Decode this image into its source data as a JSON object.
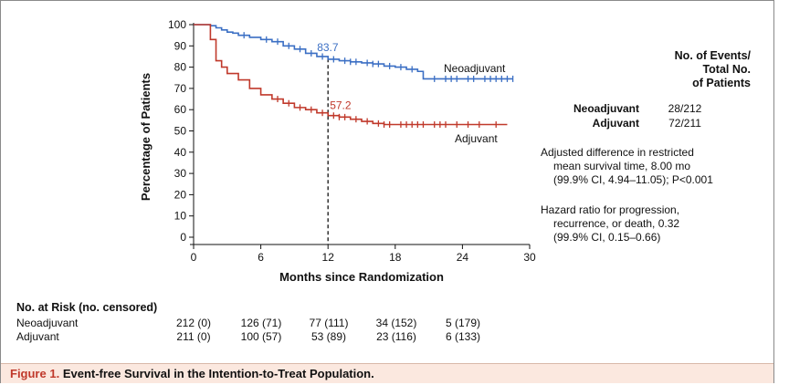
{
  "chart_data": {
    "type": "line",
    "xlabel": "Months since Randomization",
    "ylabel": "Percentage of Patients",
    "xlim": [
      0,
      30
    ],
    "ylim": [
      0,
      100
    ],
    "xticks": [
      0,
      6,
      12,
      18,
      24,
      30
    ],
    "yticks": [
      0,
      10,
      20,
      30,
      40,
      50,
      60,
      70,
      80,
      90,
      100
    ],
    "reference_line_x": 12,
    "series": [
      {
        "name": "Neoadjuvant",
        "color": "#3b6fc4",
        "annotation": {
          "x": 12,
          "value": "83.7"
        },
        "x": [
          0,
          1,
          1.5,
          2,
          2.5,
          3,
          3.5,
          4,
          5,
          6,
          7,
          8,
          9,
          10,
          11,
          12,
          13,
          14,
          15,
          16,
          17,
          18,
          19,
          20,
          20.5,
          22,
          24,
          26,
          28.5
        ],
        "y": [
          100,
          100,
          99.5,
          98.5,
          97.5,
          96.5,
          96,
          95,
          94,
          93,
          92,
          90,
          88.5,
          86.5,
          85,
          83.7,
          83,
          82.5,
          82,
          81.5,
          80.5,
          80,
          79,
          78,
          74.5,
          74.5,
          74.5,
          74.5,
          74.5
        ],
        "censor_x": [
          4.5,
          6.5,
          7.5,
          8.5,
          9.5,
          10.5,
          11.5,
          12.5,
          13.5,
          14,
          14.5,
          15.5,
          16,
          16.5,
          17.5,
          18.5,
          19.5,
          21.5,
          22.5,
          23,
          23.5,
          24.5,
          25,
          26,
          26.5,
          27,
          27.5,
          28,
          28.5
        ]
      },
      {
        "name": "Adjuvant",
        "color": "#c0392b",
        "annotation": {
          "x": 12,
          "value": "57.2"
        },
        "x": [
          0,
          1,
          1.5,
          2,
          2.5,
          3,
          4,
          5,
          6,
          7,
          8,
          9,
          10,
          11,
          12,
          13,
          14,
          15,
          16,
          17,
          18,
          20,
          22,
          24,
          26,
          28
        ],
        "y": [
          100,
          100,
          93,
          83,
          80,
          77,
          74,
          70,
          67,
          65,
          63,
          61,
          60,
          58.5,
          57.2,
          56.5,
          55.5,
          54.5,
          53.5,
          53,
          53,
          53,
          53,
          53,
          53,
          53
        ],
        "censor_x": [
          7.5,
          8.5,
          9.5,
          10.5,
          11.5,
          12.5,
          13,
          13.5,
          14.5,
          15.5,
          16.5,
          17,
          17.5,
          18.5,
          19,
          19.5,
          20,
          20.5,
          21.5,
          22,
          22.5,
          23.5,
          24.5,
          25.5,
          27
        ]
      }
    ]
  },
  "legend": {
    "header_lines": [
      "No. of Events/",
      "Total No.",
      "of Patients"
    ],
    "rows": [
      {
        "name": "Neoadjuvant",
        "value": "28/212"
      },
      {
        "name": "Adjuvant",
        "value": "72/211"
      }
    ]
  },
  "notes": {
    "rmst_lines": [
      "Adjusted difference in restricted",
      "mean survival time, 8.00 mo",
      "(99.9% CI, 4.94–11.05); P<0.001"
    ],
    "hr_lines": [
      "Hazard ratio for progression,",
      "recurrence, or death, 0.32",
      "(99.9% CI, 0.15–0.66)"
    ]
  },
  "risk_table": {
    "title": "No. at Risk (no. censored)",
    "rows": [
      {
        "name": "Neoadjuvant",
        "cells": [
          "212 (0)",
          "126 (71)",
          "77 (111)",
          "34 (152)",
          "5 (179)"
        ]
      },
      {
        "name": "Adjuvant",
        "cells": [
          "211 (0)",
          "100 (57)",
          "53 (89)",
          "23 (116)",
          "6 (133)"
        ]
      }
    ]
  },
  "caption": {
    "label": "Figure 1.",
    "text": "Event-free Survival in the Intention-to-Treat Population."
  }
}
